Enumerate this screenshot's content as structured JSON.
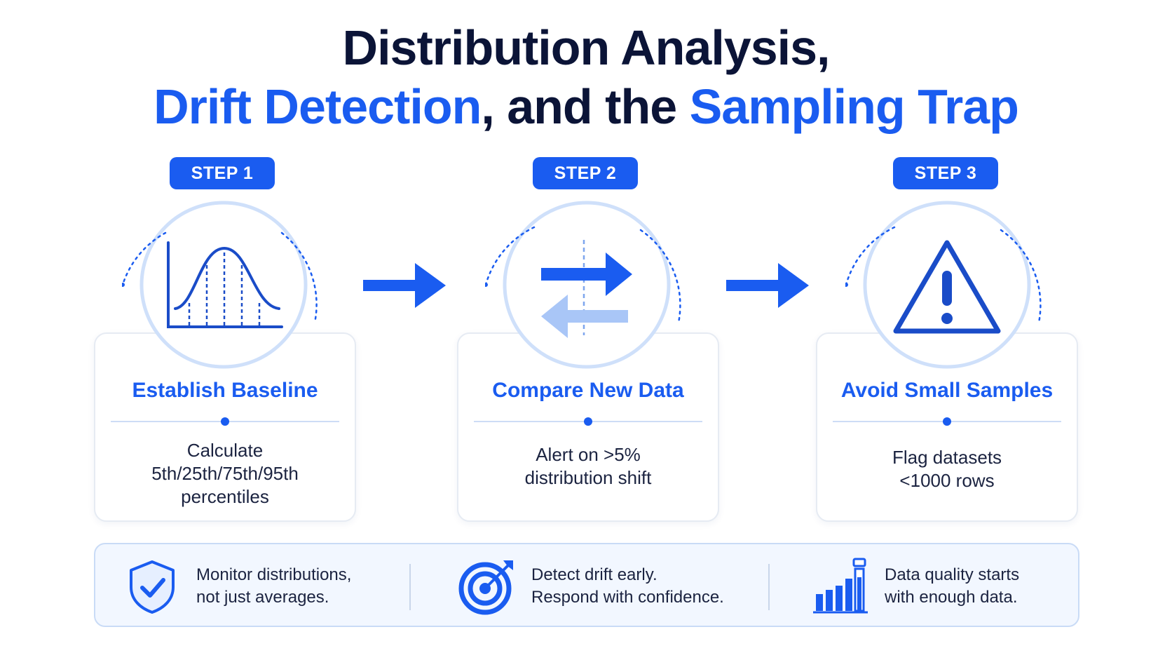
{
  "title": {
    "line1": "Distribution Analysis,",
    "line2_hl1": "Drift Detection",
    "line2_mid": ", and the ",
    "line2_hl2": "Sampling Trap"
  },
  "steps": [
    {
      "badge": "STEP 1",
      "icon": "bell-curve-icon",
      "title": "Establish Baseline",
      "desc_lines": [
        "Calculate",
        "5th/25th/75th/95th",
        "percentiles"
      ]
    },
    {
      "badge": "STEP 2",
      "icon": "compare-arrows-icon",
      "title": "Compare New Data",
      "desc_lines": [
        "Alert on >5%",
        "distribution shift"
      ]
    },
    {
      "badge": "STEP 3",
      "icon": "warning-triangle-icon",
      "title": "Avoid Small Samples",
      "desc_lines": [
        "Flag datasets",
        "<1000 rows"
      ]
    }
  ],
  "bottom": [
    {
      "icon": "shield-check-icon",
      "lines": [
        "Monitor distributions,",
        "not just averages."
      ]
    },
    {
      "icon": "target-icon",
      "lines": [
        "Detect drift early.",
        "Respond with confidence."
      ]
    },
    {
      "icon": "bar-chart-icon",
      "lines": [
        "Data quality starts",
        "with enough data."
      ]
    }
  ],
  "colors": {
    "accent": "#1a5cf0",
    "dark": "#0b1437",
    "light_accent": "#8fb4f5",
    "panel_bg": "#f2f7ff"
  }
}
